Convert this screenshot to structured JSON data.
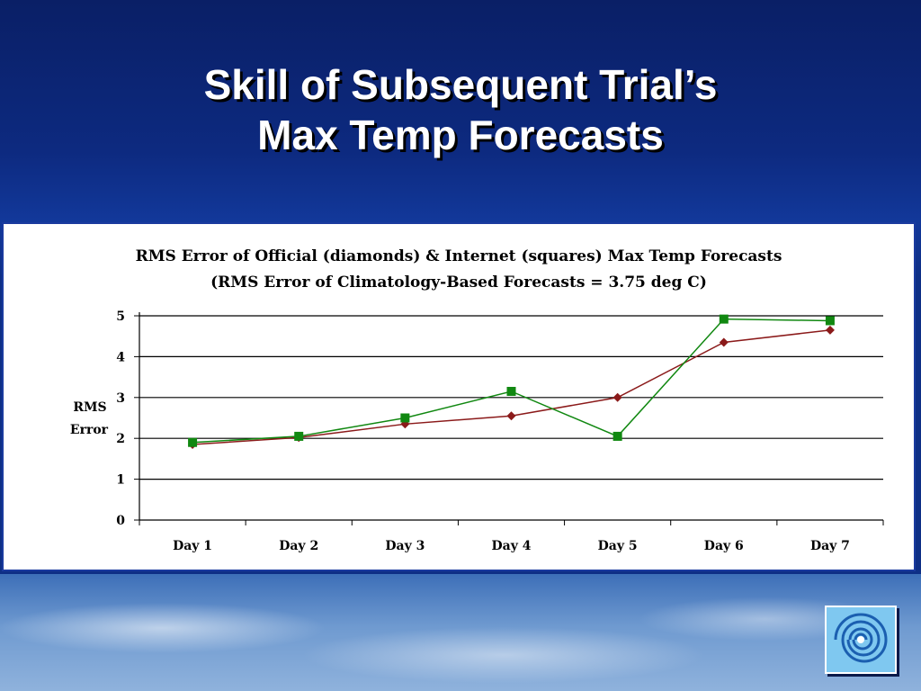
{
  "slide": {
    "title_line1": "Skill of Subsequent Trial’s",
    "title_line2": "Max Temp Forecasts"
  },
  "logo": {
    "icon": "swirl-logo-icon"
  },
  "colors": {
    "official": "#8b1a1a",
    "internet": "#118811",
    "frame": "#1a3a9e"
  },
  "chart_data": {
    "type": "line",
    "title": "RMS Error of Official (diamonds) & Internet (squares) Max Temp Forecasts",
    "subtitle": "(RMS Error of Climatology-Based Forecasts = 3.75 deg C)",
    "ylabel_line1": "RMS",
    "ylabel_line2": "Error",
    "xlabel": "",
    "ylim": [
      0,
      5
    ],
    "yticks": [
      0,
      1,
      2,
      3,
      4,
      5
    ],
    "grid": true,
    "categories": [
      "Day 1",
      "Day 2",
      "Day 3",
      "Day 4",
      "Day 5",
      "Day 6",
      "Day 7"
    ],
    "series": [
      {
        "marker": "diamond",
        "color": "#8b1a1a",
        "values": [
          1.85,
          2.02,
          2.35,
          2.55,
          3.0,
          4.35,
          4.65
        ]
      },
      {
        "marker": "square",
        "color": "#118811",
        "values": [
          1.9,
          2.05,
          2.5,
          3.15,
          2.05,
          4.92,
          4.88
        ]
      }
    ]
  }
}
